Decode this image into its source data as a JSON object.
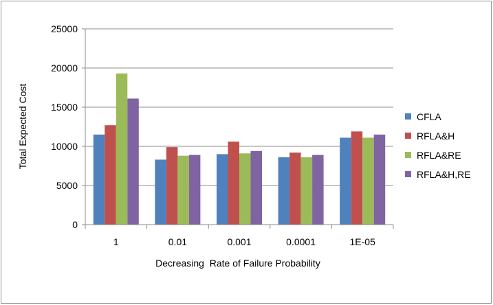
{
  "chart_data": {
    "type": "bar",
    "title": "",
    "xlabel": "Decreasing  Rate of Failure Probability",
    "ylabel": "Total Expected Cost",
    "categories": [
      "1",
      "0.01",
      "0.001",
      "0.0001",
      "1E-05"
    ],
    "ylim": [
      0,
      25000
    ],
    "yticks": [
      0,
      5000,
      10000,
      15000,
      20000,
      25000
    ],
    "grid": true,
    "legend_position": "right",
    "series": [
      {
        "name": "CFLA",
        "color": "#4f81bd",
        "values": [
          11500,
          8300,
          9000,
          8600,
          11100
        ]
      },
      {
        "name": "RFLA&H",
        "color": "#c0504d",
        "values": [
          12700,
          9900,
          10600,
          9200,
          11900
        ]
      },
      {
        "name": "RFLA&RE",
        "color": "#9bbb59",
        "values": [
          19300,
          8800,
          9100,
          8600,
          11100
        ]
      },
      {
        "name": "RFLA&H,RE",
        "color": "#8064a2",
        "values": [
          16100,
          8900,
          9400,
          8900,
          11500
        ]
      }
    ]
  }
}
